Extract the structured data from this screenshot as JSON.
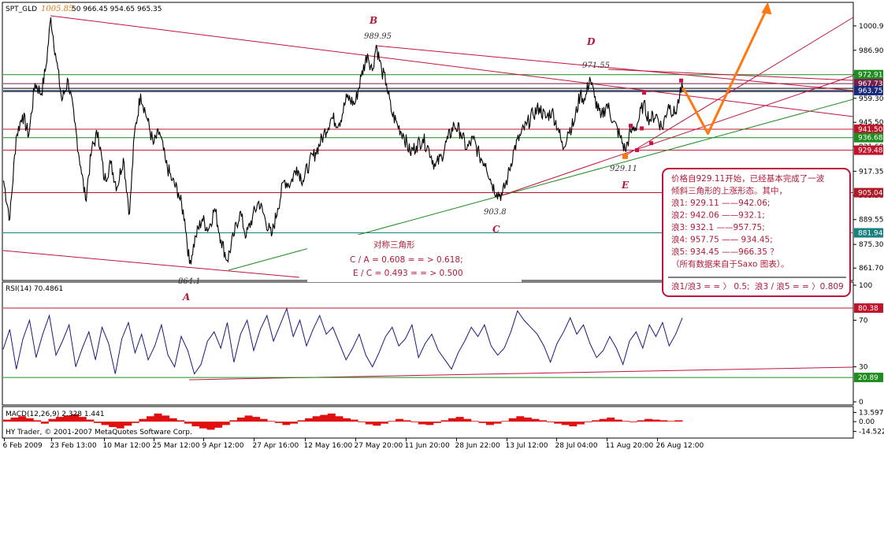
{
  "window": {
    "symbol": "SPT_GLD",
    "high_label": "1005.85",
    "ohlc_text": "50 966.45 954.65 965.35"
  },
  "chart_data": {
    "type": "line",
    "main": {
      "ylim": [
        855,
        1014
      ],
      "ticks": [
        "1000.90",
        "986.90",
        "973.05",
        "959.30",
        "945.50",
        "931.60",
        "917.35",
        "903.50",
        "889.55",
        "875.30",
        "861.70"
      ],
      "tick_values": [
        1000.9,
        986.9,
        973.05,
        959.3,
        945.5,
        931.6,
        917.35,
        903.5,
        889.55,
        875.3,
        861.7
      ],
      "price_tags": [
        {
          "label": "972.91",
          "value": 972.91,
          "color": "#1e8c1e"
        },
        {
          "label": "967.73",
          "value": 967.73,
          "color": "#7a1e4a"
        },
        {
          "label": "963.75",
          "value": 963.75,
          "color": "#1a2a7a"
        },
        {
          "label": "941.50",
          "value": 941.5,
          "color": "#c0142a"
        },
        {
          "label": "936.68",
          "value": 936.68,
          "color": "#1e8c1e"
        },
        {
          "label": "929.48",
          "value": 929.48,
          "color": "#c0142a"
        },
        {
          "label": "905.04",
          "value": 905.04,
          "color": "#b01a28"
        },
        {
          "label": "881.94",
          "value": 881.94,
          "color": "#1a8080"
        }
      ],
      "wave_points": [
        {
          "label": "864.1",
          "letter": "A",
          "i": 240,
          "value": 864.1
        },
        {
          "label": "989.95",
          "letter": "B",
          "i": 477,
          "value": 989.95
        },
        {
          "label": "903.8",
          "letter": "C",
          "i": 637,
          "value": 903.8
        },
        {
          "label": "971.55",
          "letter": "D",
          "i": 748,
          "value": 971.55
        },
        {
          "label": "929.11",
          "letter": "E",
          "i": 793,
          "value": 929.11
        }
      ],
      "series": [
        {
          "i": 4,
          "value": 912
        },
        {
          "i": 12,
          "value": 890
        },
        {
          "i": 20,
          "value": 937
        },
        {
          "i": 28,
          "value": 950
        },
        {
          "i": 36,
          "value": 938
        },
        {
          "i": 44,
          "value": 968
        },
        {
          "i": 52,
          "value": 962
        },
        {
          "i": 58,
          "value": 978
        },
        {
          "i": 64,
          "value": 1005.85
        },
        {
          "i": 70,
          "value": 985
        },
        {
          "i": 78,
          "value": 958
        },
        {
          "i": 86,
          "value": 970
        },
        {
          "i": 94,
          "value": 946
        },
        {
          "i": 102,
          "value": 920
        },
        {
          "i": 108,
          "value": 901
        },
        {
          "i": 116,
          "value": 930
        },
        {
          "i": 124,
          "value": 940
        },
        {
          "i": 132,
          "value": 912
        },
        {
          "i": 140,
          "value": 922
        },
        {
          "i": 148,
          "value": 908
        },
        {
          "i": 156,
          "value": 925
        },
        {
          "i": 164,
          "value": 893
        },
        {
          "i": 170,
          "value": 938
        },
        {
          "i": 178,
          "value": 962
        },
        {
          "i": 186,
          "value": 948
        },
        {
          "i": 194,
          "value": 933
        },
        {
          "i": 202,
          "value": 940
        },
        {
          "i": 210,
          "value": 922
        },
        {
          "i": 218,
          "value": 912
        },
        {
          "i": 226,
          "value": 905
        },
        {
          "i": 234,
          "value": 890
        },
        {
          "i": 240,
          "value": 864.1
        },
        {
          "i": 248,
          "value": 880
        },
        {
          "i": 256,
          "value": 890
        },
        {
          "i": 264,
          "value": 884
        },
        {
          "i": 272,
          "value": 896
        },
        {
          "i": 280,
          "value": 878
        },
        {
          "i": 288,
          "value": 866
        },
        {
          "i": 296,
          "value": 880
        },
        {
          "i": 304,
          "value": 894
        },
        {
          "i": 312,
          "value": 880
        },
        {
          "i": 320,
          "value": 891
        },
        {
          "i": 328,
          "value": 900
        },
        {
          "i": 336,
          "value": 890
        },
        {
          "i": 344,
          "value": 880
        },
        {
          "i": 352,
          "value": 896
        },
        {
          "i": 360,
          "value": 912
        },
        {
          "i": 368,
          "value": 910
        },
        {
          "i": 376,
          "value": 920
        },
        {
          "i": 384,
          "value": 912
        },
        {
          "i": 392,
          "value": 922
        },
        {
          "i": 400,
          "value": 928
        },
        {
          "i": 410,
          "value": 938
        },
        {
          "i": 420,
          "value": 948
        },
        {
          "i": 430,
          "value": 945
        },
        {
          "i": 440,
          "value": 960
        },
        {
          "i": 450,
          "value": 956
        },
        {
          "i": 458,
          "value": 972
        },
        {
          "i": 466,
          "value": 985
        },
        {
          "i": 472,
          "value": 975
        },
        {
          "i": 477,
          "value": 989.95
        },
        {
          "i": 484,
          "value": 975
        },
        {
          "i": 490,
          "value": 968
        },
        {
          "i": 496,
          "value": 952
        },
        {
          "i": 504,
          "value": 944
        },
        {
          "i": 512,
          "value": 938
        },
        {
          "i": 520,
          "value": 928
        },
        {
          "i": 528,
          "value": 932
        },
        {
          "i": 536,
          "value": 936
        },
        {
          "i": 544,
          "value": 930
        },
        {
          "i": 552,
          "value": 920
        },
        {
          "i": 560,
          "value": 926
        },
        {
          "i": 568,
          "value": 936
        },
        {
          "i": 576,
          "value": 944
        },
        {
          "i": 584,
          "value": 940
        },
        {
          "i": 592,
          "value": 930
        },
        {
          "i": 600,
          "value": 936
        },
        {
          "i": 608,
          "value": 926
        },
        {
          "i": 616,
          "value": 922
        },
        {
          "i": 624,
          "value": 910
        },
        {
          "i": 630,
          "value": 905
        },
        {
          "i": 637,
          "value": 903.8
        },
        {
          "i": 644,
          "value": 914
        },
        {
          "i": 652,
          "value": 930
        },
        {
          "i": 660,
          "value": 938
        },
        {
          "i": 668,
          "value": 944
        },
        {
          "i": 676,
          "value": 950
        },
        {
          "i": 684,
          "value": 954
        },
        {
          "i": 692,
          "value": 948
        },
        {
          "i": 700,
          "value": 952
        },
        {
          "i": 708,
          "value": 942
        },
        {
          "i": 714,
          "value": 930
        },
        {
          "i": 720,
          "value": 940
        },
        {
          "i": 728,
          "value": 945
        },
        {
          "i": 736,
          "value": 962
        },
        {
          "i": 742,
          "value": 958
        },
        {
          "i": 748,
          "value": 971.55
        },
        {
          "i": 754,
          "value": 960
        },
        {
          "i": 762,
          "value": 948
        },
        {
          "i": 770,
          "value": 956
        },
        {
          "i": 778,
          "value": 946
        },
        {
          "i": 786,
          "value": 938
        },
        {
          "i": 793,
          "value": 929.11
        },
        {
          "i": 800,
          "value": 940
        },
        {
          "i": 808,
          "value": 944
        },
        {
          "i": 816,
          "value": 956
        },
        {
          "i": 824,
          "value": 947
        },
        {
          "i": 832,
          "value": 950
        },
        {
          "i": 840,
          "value": 942
        },
        {
          "i": 848,
          "value": 956
        },
        {
          "i": 856,
          "value": 950
        },
        {
          "i": 862,
          "value": 960
        },
        {
          "i": 866,
          "value": 965.35
        }
      ],
      "forecast": [
        {
          "i": 872,
          "value": 961
        },
        {
          "i": 898,
          "value": 939
        },
        {
          "i": 974,
          "value": 1012
        }
      ],
      "markers": [
        {
          "i": 864,
          "value": 969.5,
          "color": "#cc1144"
        },
        {
          "i": 817,
          "value": 962.5,
          "color": "#cc1144"
        },
        {
          "i": 800,
          "value": 943.5,
          "color": "#cc1144"
        },
        {
          "i": 814,
          "value": 942,
          "color": "#cc1144"
        },
        {
          "i": 826,
          "value": 933.5,
          "color": "#cc1144"
        },
        {
          "i": 808,
          "value": 929.5,
          "color": "#cc1144"
        },
        {
          "i": 793,
          "value": 926,
          "color": "#ff7711"
        }
      ]
    },
    "rsi": {
      "label": "RSI(14) 70.4861",
      "ylim": [
        0,
        100
      ],
      "ticks": [
        "100",
        "70",
        "30",
        "0"
      ],
      "tick_values": [
        100,
        70,
        30,
        0
      ],
      "tags": [
        {
          "label": "80.38",
          "value": 80.38,
          "color": "#c0142a"
        },
        {
          "label": "20.89",
          "value": 20.89,
          "color": "#1e8c1e"
        }
      ],
      "values": [
        45,
        62,
        28,
        54,
        70,
        38,
        58,
        74,
        40,
        52,
        66,
        30,
        46,
        60,
        36,
        64,
        50,
        24,
        54,
        68,
        42,
        58,
        36,
        48,
        66,
        40,
        30,
        56,
        44,
        24,
        32,
        52,
        60,
        46,
        68,
        34,
        58,
        70,
        44,
        62,
        74,
        52,
        66,
        80,
        56,
        70,
        48,
        62,
        74,
        58,
        64,
        50,
        36,
        46,
        58,
        40,
        30,
        42,
        56,
        64,
        48,
        54,
        66,
        38,
        50,
        58,
        44,
        36,
        28,
        42,
        52,
        64,
        56,
        66,
        48,
        40,
        46,
        60,
        78,
        70,
        64,
        58,
        48,
        34,
        50,
        60,
        72,
        58,
        66,
        50,
        38,
        44,
        56,
        46,
        32,
        52,
        60,
        46,
        66,
        56,
        68,
        48,
        58,
        72
      ]
    },
    "macd": {
      "label": "MACD(12,26,9) 2.328 1.441",
      "ylim": [
        -22,
        20
      ],
      "ticks": [
        "13.597",
        "0.00",
        "-14.522"
      ],
      "tick_values": [
        13.597,
        0,
        -14.522
      ],
      "values": [
        3,
        6,
        8,
        5,
        2,
        -3,
        4,
        7,
        9,
        11,
        7,
        3,
        -2,
        -5,
        -8,
        -10,
        -6,
        -2,
        4,
        8,
        12,
        9,
        5,
        2,
        -3,
        -7,
        -10,
        -12,
        -9,
        -5,
        2,
        6,
        9,
        7,
        4,
        1,
        -2,
        -5,
        -3,
        2,
        5,
        8,
        10,
        12,
        8,
        5,
        3,
        -1,
        -4,
        -6,
        -3,
        1,
        4,
        2,
        -1,
        -4,
        -5,
        -2,
        2,
        5,
        7,
        4,
        1,
        -2,
        -5,
        -3,
        1,
        5,
        8,
        6,
        4,
        2,
        -1,
        -3,
        -5,
        -7,
        -4,
        -1,
        2,
        4,
        6,
        3,
        1,
        -1,
        2,
        4,
        3,
        2,
        1,
        2
      ]
    },
    "xaxis": {
      "labels": [
        {
          "i": 5,
          "text": "6 Feb 2009"
        },
        {
          "i": 65,
          "text": "23 Feb 13:00"
        },
        {
          "i": 132,
          "text": "10 Mar 12:00"
        },
        {
          "i": 195,
          "text": "25 Mar 12:00"
        },
        {
          "i": 258,
          "text": "9 Apr 12:00"
        },
        {
          "i": 322,
          "text": "27 Apr 16:00"
        },
        {
          "i": 387,
          "text": "12 May 16:00"
        },
        {
          "i": 451,
          "text": "27 May 20:00"
        },
        {
          "i": 515,
          "text": "11 Jun 20:00"
        },
        {
          "i": 579,
          "text": "28 Jun 22:00"
        },
        {
          "i": 643,
          "text": "13 Jul 12:00"
        },
        {
          "i": 706,
          "text": "28 Jul 04:00"
        },
        {
          "i": 770,
          "text": "11 Aug 20:00"
        },
        {
          "i": 834,
          "text": "26 Aug 12:00"
        }
      ]
    }
  },
  "annotations": {
    "triangle_title": "对称三角形",
    "ratio_ca": "C / A = 0.608 = = > 0.618;",
    "ratio_ec": "E / C = 0.493 = = > 0.500",
    "note_lines": [
      "价格自929.11开始，已经基本完成了一波",
      "倾斜三角形的上涨形态。其中，",
      "浪1: 929.11 ——942.06;",
      "浪2: 942.06 ——932.1;",
      "浪3: 932.1 ——957.75;",
      "浪4: 957.75 —— 934.45;",
      "浪5: 934.45 ——966.35 ？",
      "（所有数据来自于Saxo 图表）。"
    ],
    "note_ratio_1": "浪1/浪3 = = 〉 0.5;",
    "note_ratio_2": "浪3 / 浪5 = = 〉0.809"
  },
  "copyright": "HY Trader, © 2001-2007 MetaQuotes Software Corp."
}
